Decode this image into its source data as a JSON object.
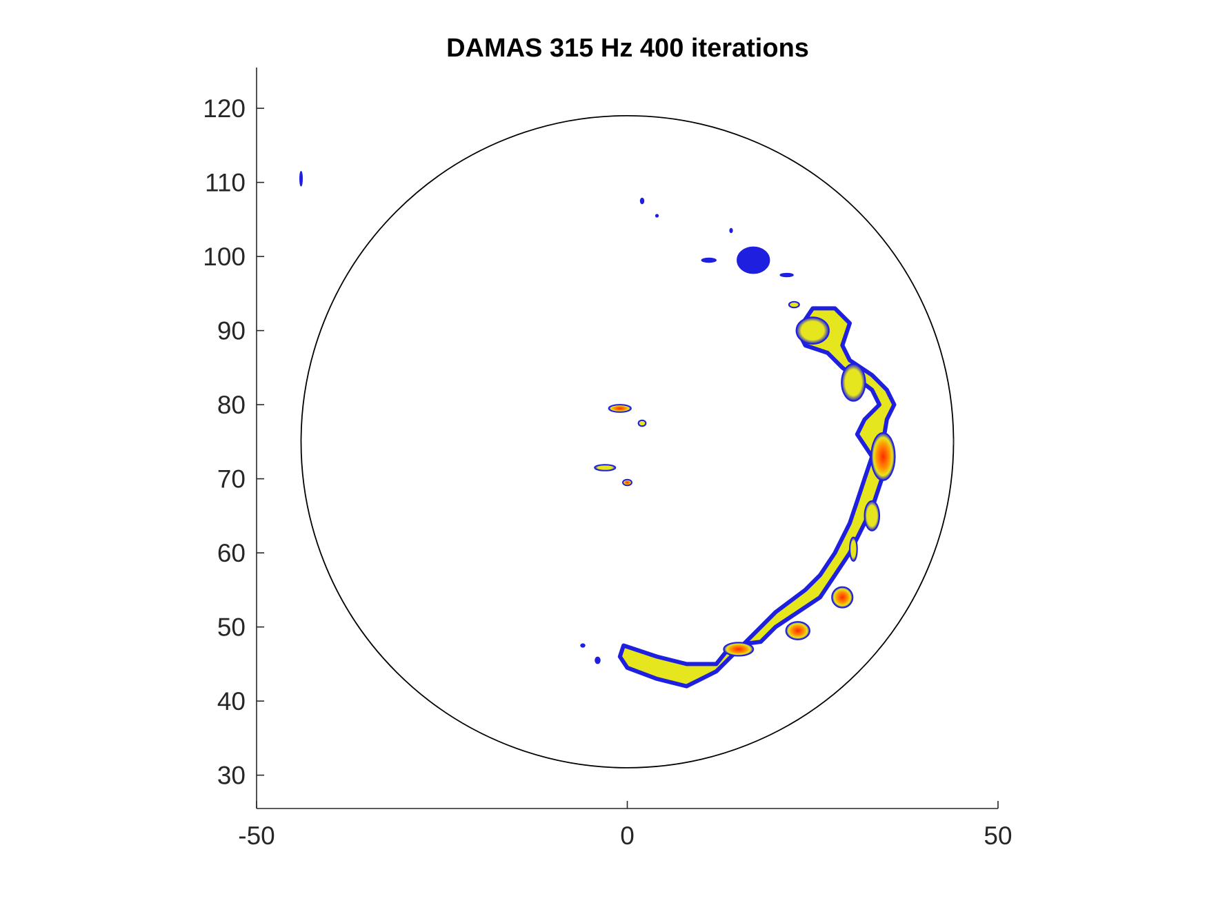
{
  "chart_data": {
    "type": "contour",
    "title": "DAMAS 315 Hz 400 iterations",
    "xlabel": "",
    "ylabel": "",
    "xlim": [
      -50,
      50
    ],
    "ylim": [
      25.5,
      125.5
    ],
    "xticks": [
      -50,
      0,
      50
    ],
    "yticks": [
      30,
      40,
      50,
      60,
      70,
      80,
      90,
      100,
      110,
      120
    ],
    "grid": false,
    "legend": "none",
    "reference_circle": {
      "cx": 0,
      "cy": 75,
      "r": 44
    },
    "colors": {
      "low": "#1f1fe0",
      "mid": "#e6e61e",
      "high": "#ff2a00"
    },
    "sources": [
      {
        "kind": "band",
        "level": "mid",
        "points": [
          [
            -0.5,
            47.5
          ],
          [
            4,
            46
          ],
          [
            8,
            45
          ],
          [
            12,
            45
          ],
          [
            14,
            47.5
          ],
          [
            18,
            48
          ],
          [
            20,
            50
          ],
          [
            23,
            52
          ],
          [
            26,
            54
          ],
          [
            28,
            57
          ],
          [
            30,
            60
          ],
          [
            32,
            64
          ],
          [
            33,
            66
          ],
          [
            34,
            69
          ],
          [
            35,
            72
          ],
          [
            34.5,
            75
          ],
          [
            35,
            78
          ],
          [
            36,
            80
          ],
          [
            35,
            82
          ],
          [
            33,
            84
          ],
          [
            30,
            86
          ],
          [
            29,
            88
          ],
          [
            30,
            91
          ],
          [
            28,
            93
          ],
          [
            25,
            93
          ],
          [
            23,
            90
          ],
          [
            24,
            88
          ],
          [
            27,
            87
          ],
          [
            29,
            85
          ],
          [
            33,
            82
          ],
          [
            34,
            80
          ],
          [
            32,
            78
          ],
          [
            31,
            76
          ],
          [
            33,
            73
          ],
          [
            32,
            70
          ],
          [
            31,
            67
          ],
          [
            30,
            64
          ],
          [
            28,
            60
          ],
          [
            26,
            57
          ],
          [
            24,
            55
          ],
          [
            20,
            52
          ],
          [
            17,
            49
          ],
          [
            14,
            46
          ],
          [
            12,
            44
          ],
          [
            8,
            42
          ],
          [
            4,
            43
          ],
          [
            0,
            44.5
          ],
          [
            -1,
            46
          ]
        ]
      },
      {
        "kind": "blob",
        "level": "high",
        "x": 34.5,
        "y": 73,
        "rx": 1.6,
        "ry": 3.2
      },
      {
        "kind": "blob",
        "level": "high",
        "x": 29,
        "y": 54,
        "rx": 1.4,
        "ry": 1.4
      },
      {
        "kind": "blob",
        "level": "high",
        "x": 23,
        "y": 49.5,
        "rx": 1.6,
        "ry": 1.2
      },
      {
        "kind": "blob",
        "level": "high",
        "x": 15,
        "y": 47,
        "rx": 2,
        "ry": 0.9
      },
      {
        "kind": "blob",
        "level": "mid",
        "x": 25,
        "y": 90,
        "rx": 2.2,
        "ry": 1.8
      },
      {
        "kind": "blob",
        "level": "mid",
        "x": 30.5,
        "y": 83,
        "rx": 1.6,
        "ry": 2.5
      },
      {
        "kind": "blob",
        "level": "mid",
        "x": 30.5,
        "y": 60.5,
        "rx": 0.5,
        "ry": 1.6
      },
      {
        "kind": "blob",
        "level": "mid",
        "x": 33,
        "y": 65,
        "rx": 1,
        "ry": 2
      },
      {
        "kind": "blob",
        "level": "high",
        "x": -1,
        "y": 79.5,
        "rx": 1.5,
        "ry": 0.5
      },
      {
        "kind": "blob",
        "level": "mid",
        "x": 2,
        "y": 77.5,
        "rx": 0.5,
        "ry": 0.4
      },
      {
        "kind": "blob",
        "level": "mid",
        "x": -3,
        "y": 71.5,
        "rx": 1.4,
        "ry": 0.4
      },
      {
        "kind": "blob",
        "level": "high",
        "x": 0,
        "y": 69.5,
        "rx": 0.6,
        "ry": 0.4
      },
      {
        "kind": "blob",
        "level": "low",
        "x": 17,
        "y": 99.5,
        "rx": 2.2,
        "ry": 1.8
      },
      {
        "kind": "blob",
        "level": "low",
        "x": 11,
        "y": 99.5,
        "rx": 1,
        "ry": 0.3
      },
      {
        "kind": "blob",
        "level": "low",
        "x": 21.5,
        "y": 97.5,
        "rx": 0.9,
        "ry": 0.25
      },
      {
        "kind": "blob",
        "level": "low",
        "x": 2,
        "y": 107.5,
        "rx": 0.25,
        "ry": 0.4
      },
      {
        "kind": "blob",
        "level": "low",
        "x": 4,
        "y": 105.5,
        "rx": 0.2,
        "ry": 0.2
      },
      {
        "kind": "blob",
        "level": "low",
        "x": 14,
        "y": 103.5,
        "rx": 0.2,
        "ry": 0.3
      },
      {
        "kind": "blob",
        "level": "mid",
        "x": 22.5,
        "y": 93.5,
        "rx": 0.7,
        "ry": 0.4
      },
      {
        "kind": "blob",
        "level": "low",
        "x": -44,
        "y": 110.5,
        "rx": 0.15,
        "ry": 1
      },
      {
        "kind": "blob",
        "level": "low",
        "x": -6,
        "y": 47.5,
        "rx": 0.3,
        "ry": 0.25
      },
      {
        "kind": "blob",
        "level": "low",
        "x": -4,
        "y": 45.5,
        "rx": 0.35,
        "ry": 0.45
      }
    ]
  }
}
